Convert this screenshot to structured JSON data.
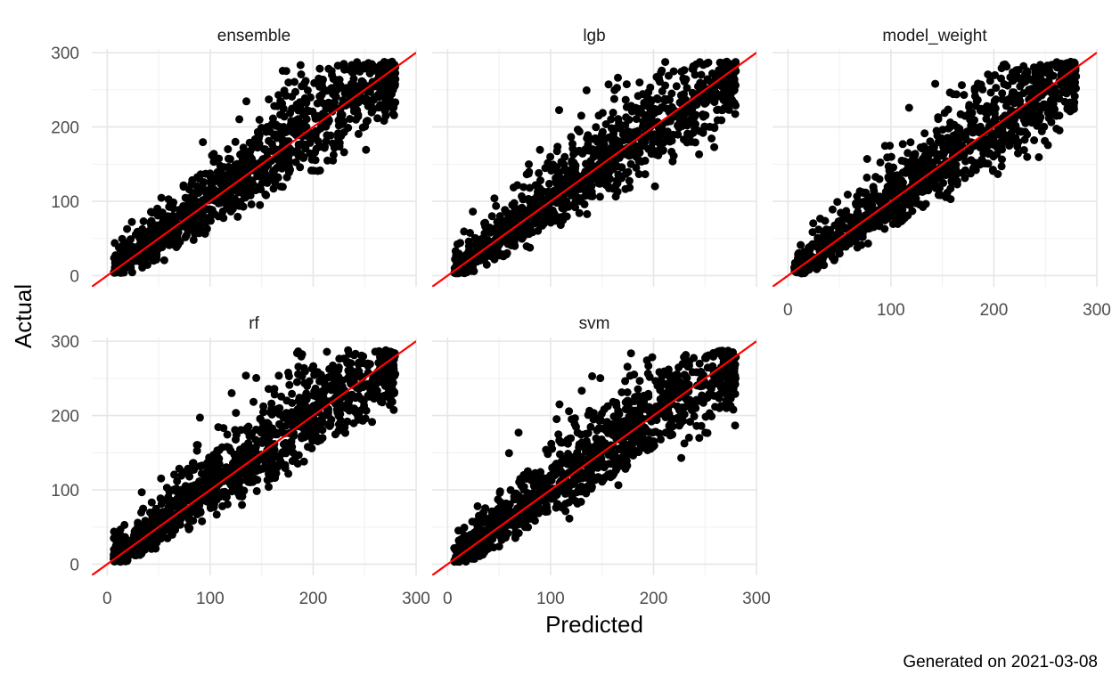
{
  "chart_data": {
    "type": "scatter",
    "facets": [
      "ensemble",
      "lgb",
      "model_weight",
      "rf",
      "svm"
    ],
    "xlabel": "Predicted",
    "ylabel": "Actual",
    "xlim": [
      0,
      300
    ],
    "ylim": [
      0,
      300
    ],
    "x_ticks": [
      0,
      100,
      200,
      300
    ],
    "y_ticks": [
      0,
      100,
      200,
      300
    ],
    "grid": true,
    "reference_line": {
      "intercept": 0,
      "slope": 1,
      "color": "#FF0000"
    },
    "point_color": "#000000",
    "caption": "Generated on 2021-03-08",
    "note": "Each facet shows several thousand overlapping points clustered along y = x between 0 and 290."
  }
}
